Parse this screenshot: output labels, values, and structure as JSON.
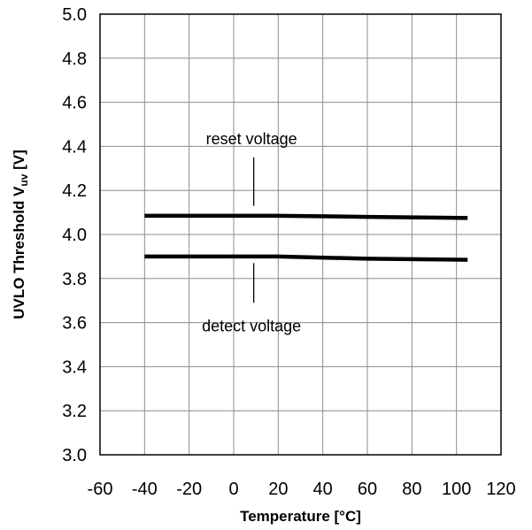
{
  "chart_data": {
    "type": "line",
    "x_axis": {
      "label": "Temperature [°C]",
      "min": -60,
      "max": 120,
      "ticks": [
        -60,
        -40,
        -20,
        0,
        20,
        40,
        60,
        80,
        100,
        120
      ]
    },
    "y_axis": {
      "label_main": "UVLO Threshold V",
      "label_sub": "uv",
      "label_unit": " [V]",
      "min": 3.0,
      "max": 5.0,
      "ticks": [
        "3.0",
        "3.2",
        "3.4",
        "3.6",
        "3.8",
        "4.0",
        "4.2",
        "4.4",
        "4.6",
        "4.8",
        "5.0"
      ]
    },
    "grid": true,
    "series": [
      {
        "name": "reset voltage",
        "points": [
          [
            -40,
            4.085
          ],
          [
            20,
            4.085
          ],
          [
            60,
            4.08
          ],
          [
            105,
            4.075
          ]
        ]
      },
      {
        "name": "detect voltage",
        "points": [
          [
            -40,
            3.9
          ],
          [
            20,
            3.9
          ],
          [
            60,
            3.89
          ],
          [
            105,
            3.885
          ]
        ]
      }
    ],
    "annotations": [
      {
        "text": "reset voltage",
        "x": 8,
        "y": 4.41,
        "leader": [
          [
            9,
            4.35
          ],
          [
            9,
            4.13
          ]
        ]
      },
      {
        "text": "detect voltage",
        "x": 8,
        "y": 3.56,
        "leader": [
          [
            9,
            3.87
          ],
          [
            9,
            3.69
          ]
        ]
      }
    ]
  }
}
